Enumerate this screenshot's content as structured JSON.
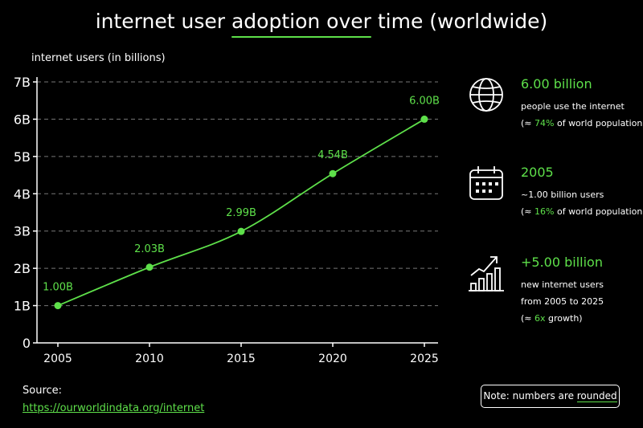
{
  "title": {
    "pre": "internet user ",
    "mid": "adoption over",
    "post": " time (worldwide)"
  },
  "chart_data": {
    "type": "line",
    "ylabel": "internet users (in billions)",
    "xlabel": "",
    "x": [
      2005,
      2010,
      2015,
      2020,
      2025
    ],
    "y_ticks": [
      "0",
      "1B",
      "2B",
      "3B",
      "4B",
      "5B",
      "6B",
      "7B"
    ],
    "x_ticks": [
      "2005",
      "2010",
      "2015",
      "2020",
      "2025"
    ],
    "ylim": [
      0,
      7
    ],
    "grid": "horizontal dashed",
    "accent_color": "#5ee04a",
    "series": [
      {
        "values": [
          1.0,
          2.03,
          2.99,
          4.54,
          6.0
        ],
        "labels": [
          "1.00B",
          "2.03B",
          "2.99B",
          "4.54B",
          "6.00B"
        ]
      }
    ]
  },
  "stats": [
    {
      "icon": "globe-icon",
      "big": "6.00 billion",
      "line1": "people use the internet",
      "line2_pre": "(≈ ",
      "line2_hl": "74%",
      "line2_post": " of world population)"
    },
    {
      "icon": "calendar-icon",
      "big": "2005",
      "line1": "~1.00 billion users",
      "line2_pre": "(≈ ",
      "line2_hl": "16%",
      "line2_post": " of world population)"
    },
    {
      "icon": "growth-chart-icon",
      "big": "+5.00 billion",
      "line1": "new internet users",
      "line2": "from 2005 to 2025",
      "line3_pre": "(≈ ",
      "line3_hl": "6x",
      "line3_post": " growth)"
    }
  ],
  "source": {
    "label": "Source:",
    "url": "https://ourworldindata.org/internet"
  },
  "note": {
    "pre": "Note: numbers are ",
    "hl": "rounded"
  }
}
